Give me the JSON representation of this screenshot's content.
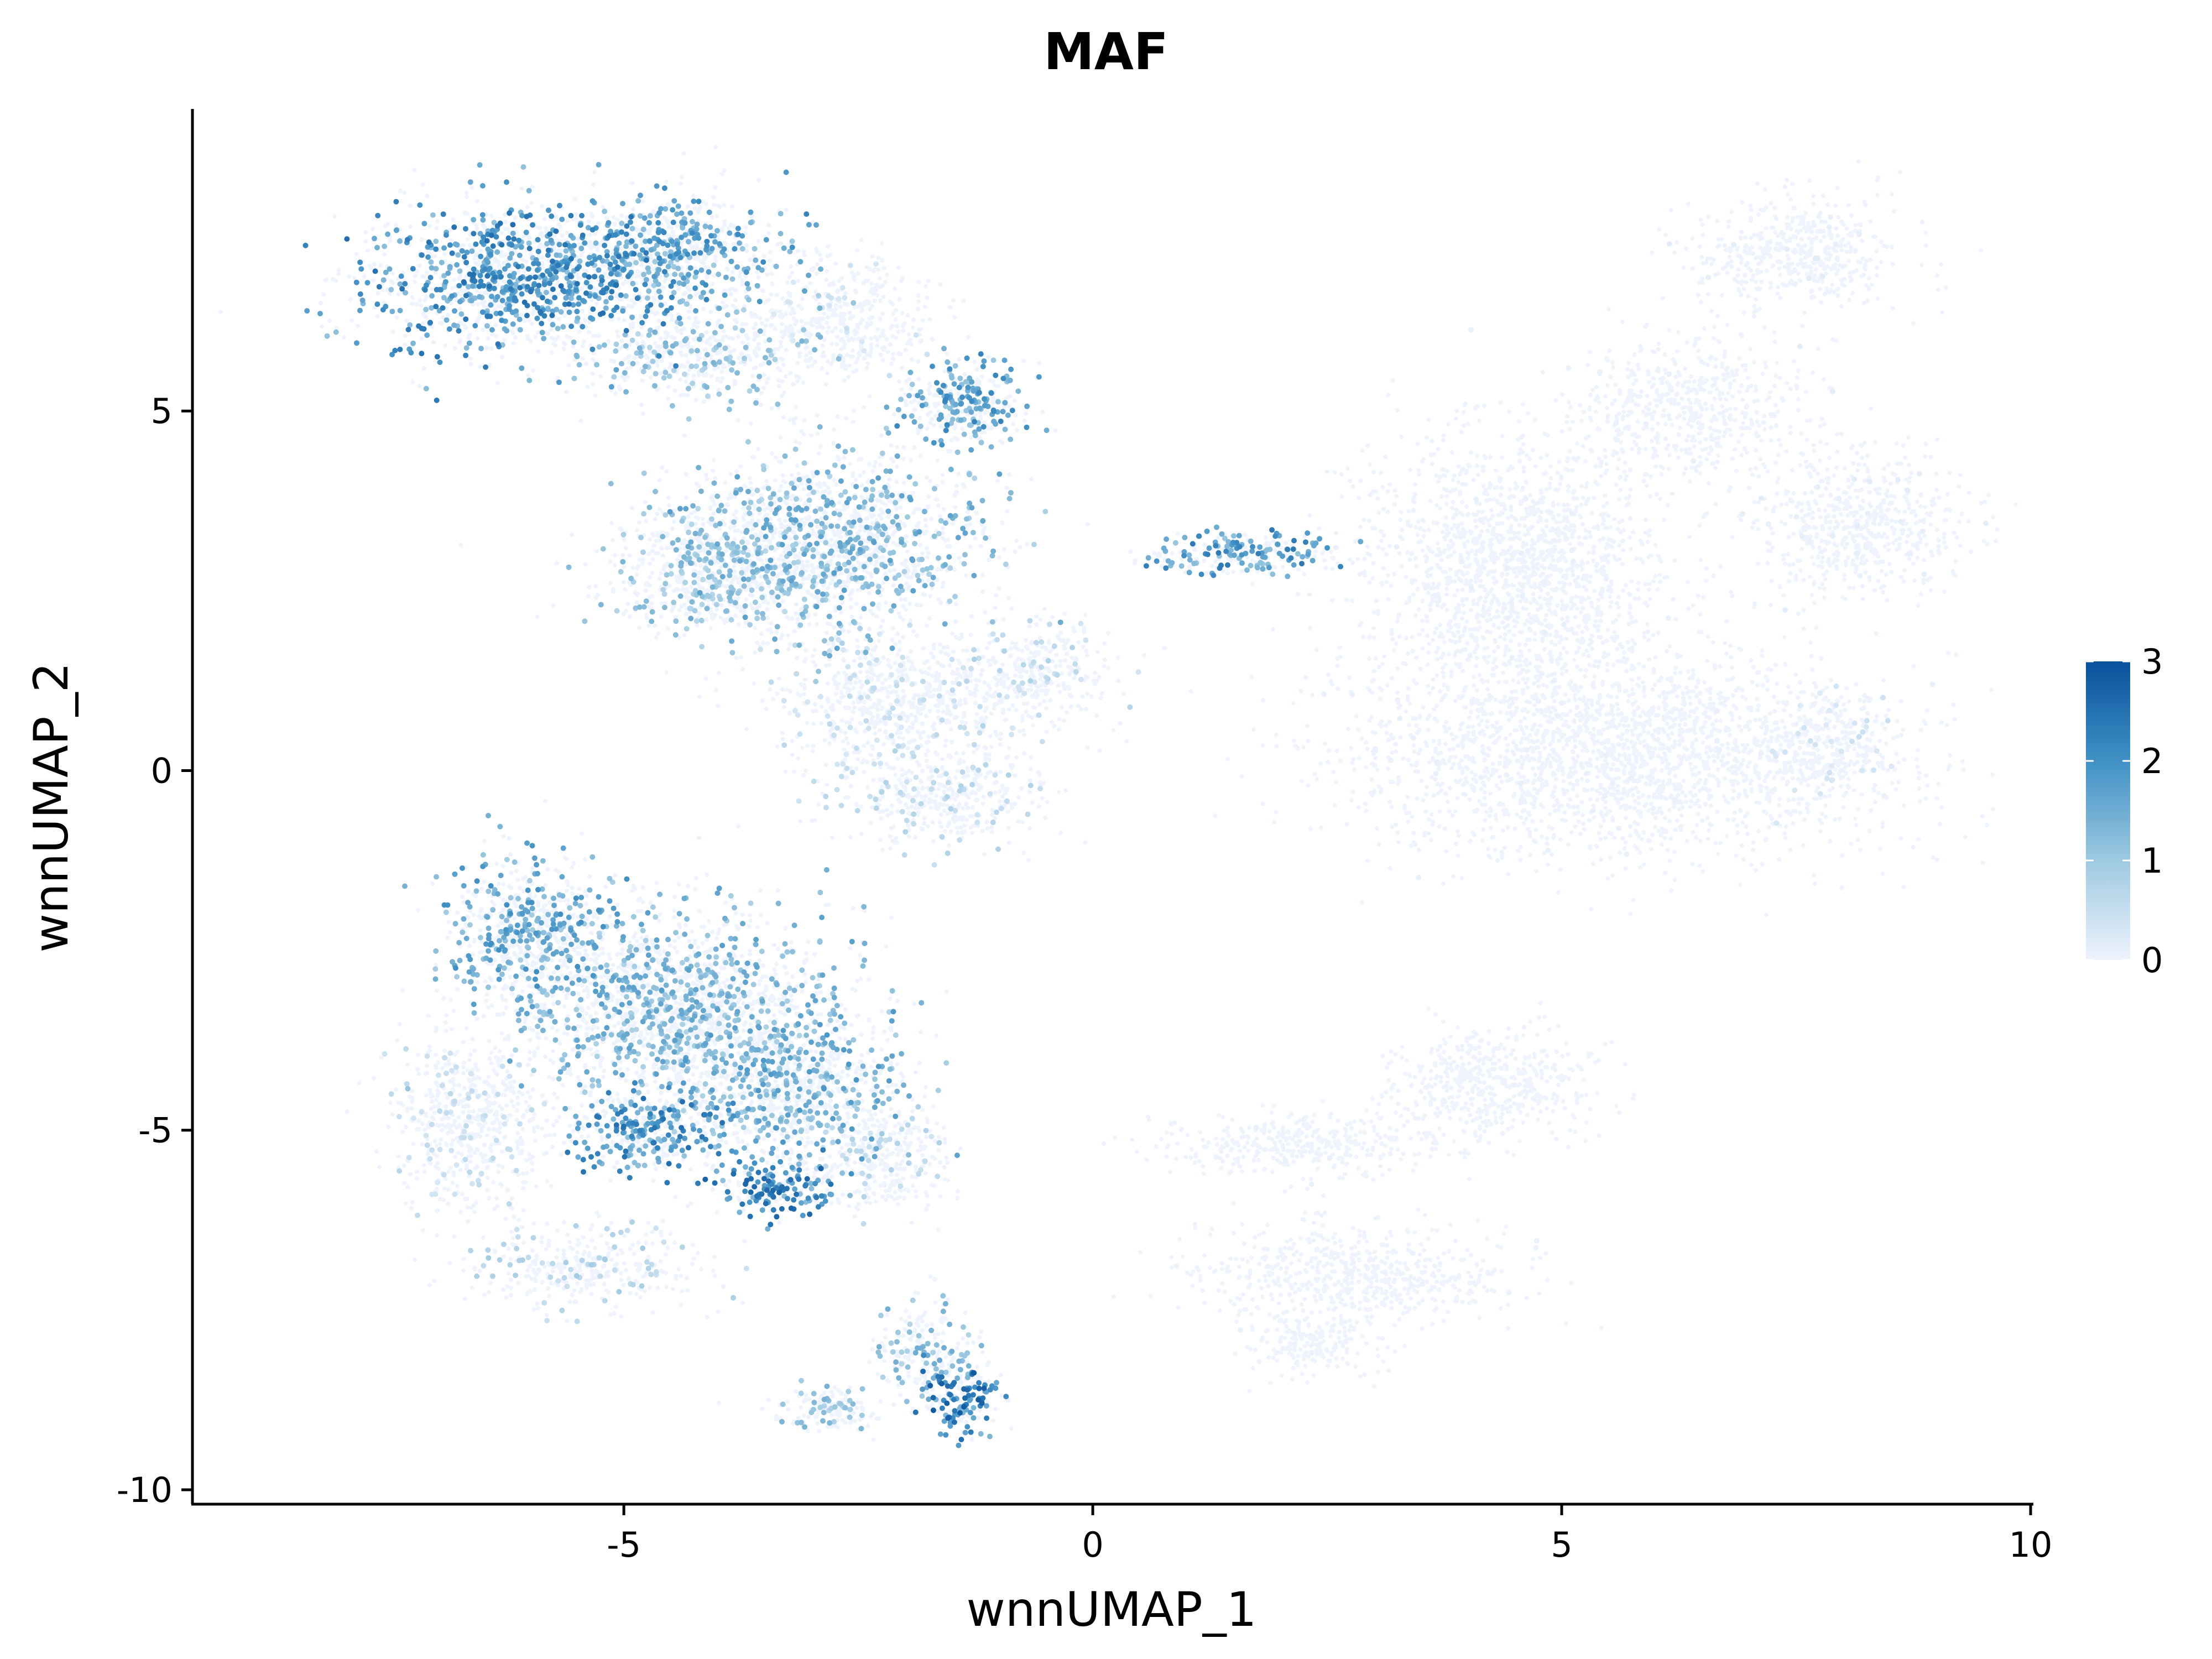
{
  "chart_data": {
    "type": "scatter",
    "title": "MAF",
    "xlabel": "wnnUMAP_1",
    "ylabel": "wnnUMAP_2",
    "xlim": [
      -9.6,
      10
    ],
    "ylim": [
      -10.2,
      9.2
    ],
    "x_ticks": [
      -5,
      0,
      5,
      10
    ],
    "x_tick_labels": [
      "-5",
      "0",
      "5",
      "10"
    ],
    "y_ticks": [
      -10,
      -5,
      0,
      5
    ],
    "y_tick_labels": [
      "-10",
      "-5",
      "0",
      "5"
    ],
    "grid": false,
    "legend": {
      "position": "right",
      "type": "colorbar",
      "min": 0,
      "max": 3,
      "ticks": [
        0,
        1,
        2,
        3
      ],
      "tick_labels": [
        "0",
        "1",
        "2",
        "3"
      ],
      "colors": [
        "#eef3fd",
        "#9ecae1",
        "#4292c6",
        "#08519c"
      ]
    },
    "clusters": [
      {
        "cx": -6.2,
        "cy": 6.8,
        "rx": 1.4,
        "ry": 0.9,
        "expression": 1.6,
        "density": 1.0
      },
      {
        "cx": -4.6,
        "cy": 7.2,
        "rx": 1.2,
        "ry": 0.7,
        "expression": 1.4,
        "density": 0.9
      },
      {
        "cx": -4.2,
        "cy": 5.8,
        "rx": 1.2,
        "ry": 0.6,
        "expression": 0.9,
        "density": 0.6
      },
      {
        "cx": -2.7,
        "cy": 6.3,
        "rx": 0.9,
        "ry": 0.7,
        "expression": 0.3,
        "density": 0.5
      },
      {
        "cx": -1.4,
        "cy": 5.1,
        "rx": 0.6,
        "ry": 0.5,
        "expression": 1.4,
        "density": 0.8
      },
      {
        "cx": -2.8,
        "cy": 3.2,
        "rx": 1.4,
        "ry": 1.2,
        "expression": 1.1,
        "density": 0.9
      },
      {
        "cx": -4.1,
        "cy": 2.8,
        "rx": 1.0,
        "ry": 0.8,
        "expression": 0.9,
        "density": 0.7
      },
      {
        "cx": -2.0,
        "cy": 0.9,
        "rx": 1.3,
        "ry": 0.9,
        "expression": 0.4,
        "density": 0.6
      },
      {
        "cx": -0.6,
        "cy": 1.4,
        "rx": 0.7,
        "ry": 0.6,
        "expression": 0.5,
        "density": 0.5
      },
      {
        "cx": -1.6,
        "cy": -0.4,
        "rx": 1.0,
        "ry": 0.6,
        "expression": 0.5,
        "density": 0.5
      },
      {
        "cx": 1.6,
        "cy": 3.0,
        "rx": 0.9,
        "ry": 0.25,
        "expression": 1.5,
        "density": 0.6
      },
      {
        "cx": 4.5,
        "cy": 2.8,
        "rx": 1.5,
        "ry": 1.6,
        "expression": 0.05,
        "density": 0.7
      },
      {
        "cx": 6.4,
        "cy": 5.0,
        "rx": 1.1,
        "ry": 0.9,
        "expression": 0.05,
        "density": 0.5
      },
      {
        "cx": 7.5,
        "cy": 7.2,
        "rx": 1.0,
        "ry": 0.7,
        "expression": 0.1,
        "density": 0.6
      },
      {
        "cx": 8.2,
        "cy": 3.4,
        "rx": 1.0,
        "ry": 0.9,
        "expression": 0.1,
        "density": 0.6
      },
      {
        "cx": 5.6,
        "cy": 0.2,
        "rx": 2.6,
        "ry": 1.3,
        "expression": 0.05,
        "density": 1.0
      },
      {
        "cx": 7.9,
        "cy": 0.3,
        "rx": 0.7,
        "ry": 0.7,
        "expression": 0.3,
        "density": 0.4
      },
      {
        "cx": -6.0,
        "cy": -2.2,
        "rx": 0.8,
        "ry": 0.9,
        "expression": 1.3,
        "density": 0.8
      },
      {
        "cx": -4.5,
        "cy": -3.3,
        "rx": 1.5,
        "ry": 1.2,
        "expression": 1.1,
        "density": 1.0
      },
      {
        "cx": -3.2,
        "cy": -4.4,
        "rx": 1.0,
        "ry": 1.0,
        "expression": 1.2,
        "density": 0.9
      },
      {
        "cx": -4.8,
        "cy": -5.0,
        "rx": 0.7,
        "ry": 0.5,
        "expression": 1.6,
        "density": 0.8
      },
      {
        "cx": -3.4,
        "cy": -5.8,
        "rx": 0.6,
        "ry": 0.35,
        "expression": 1.7,
        "density": 0.6
      },
      {
        "cx": -6.6,
        "cy": -4.9,
        "rx": 0.8,
        "ry": 1.1,
        "expression": 0.4,
        "density": 0.6
      },
      {
        "cx": -5.4,
        "cy": -6.9,
        "rx": 1.1,
        "ry": 0.5,
        "expression": 0.6,
        "density": 0.5
      },
      {
        "cx": -2.2,
        "cy": -5.4,
        "rx": 0.6,
        "ry": 0.7,
        "expression": 0.5,
        "density": 0.5
      },
      {
        "cx": 4.2,
        "cy": -4.4,
        "rx": 1.0,
        "ry": 0.7,
        "expression": 0.03,
        "density": 0.6
      },
      {
        "cx": 2.2,
        "cy": -5.2,
        "rx": 1.4,
        "ry": 0.4,
        "expression": 0.05,
        "density": 0.5
      },
      {
        "cx": 2.8,
        "cy": -7.0,
        "rx": 1.5,
        "ry": 0.6,
        "expression": 0.03,
        "density": 0.6
      },
      {
        "cx": 2.3,
        "cy": -8.0,
        "rx": 0.6,
        "ry": 0.4,
        "expression": 0.03,
        "density": 0.3
      },
      {
        "cx": -1.4,
        "cy": -8.7,
        "rx": 0.35,
        "ry": 0.45,
        "expression": 1.8,
        "density": 0.6
      },
      {
        "cx": -1.8,
        "cy": -8.0,
        "rx": 0.45,
        "ry": 0.6,
        "expression": 1.0,
        "density": 0.4
      },
      {
        "cx": -2.8,
        "cy": -8.9,
        "rx": 0.45,
        "ry": 0.25,
        "expression": 0.9,
        "density": 0.3
      }
    ]
  }
}
